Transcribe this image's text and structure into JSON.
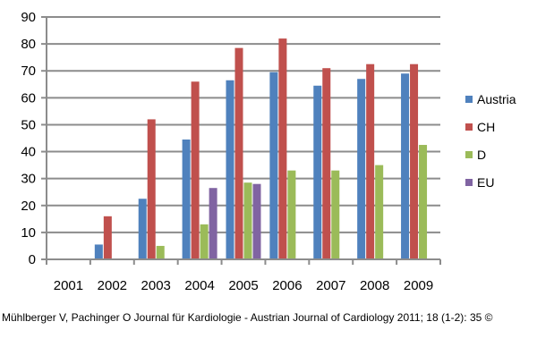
{
  "chart_data": {
    "type": "bar",
    "categories": [
      "2001",
      "2002",
      "2003",
      "2004",
      "2005",
      "2006",
      "2007",
      "2008",
      "2009"
    ],
    "series": [
      {
        "name": "Austria",
        "color": "#4f81bd",
        "values": [
          0,
          5.5,
          22.5,
          44.5,
          66.5,
          69.5,
          64.5,
          67,
          69
        ]
      },
      {
        "name": "CH",
        "color": "#c0504d",
        "values": [
          0,
          16,
          52,
          66,
          78.5,
          82,
          71,
          72.5,
          72.5
        ]
      },
      {
        "name": "D",
        "color": "#9bbb59",
        "values": [
          0,
          0,
          5,
          13,
          28.5,
          33,
          33,
          35,
          42.5
        ]
      },
      {
        "name": "EU",
        "color": "#8064a2",
        "values": [
          0,
          0,
          0,
          26.5,
          28,
          0,
          0,
          0,
          0
        ]
      }
    ],
    "ylim": [
      0,
      90
    ],
    "yticks": [
      "0",
      "10",
      "20",
      "30",
      "40",
      "50",
      "60",
      "70",
      "80",
      "90"
    ],
    "grid": true,
    "legend": "right",
    "title": "",
    "xlabel": "",
    "ylabel": ""
  },
  "citation": "Mühlberger V, Pachinger O Journal für Kardiologie - Austrian Journal of Cardiology 2011; 18 (1-2): 35 ©"
}
